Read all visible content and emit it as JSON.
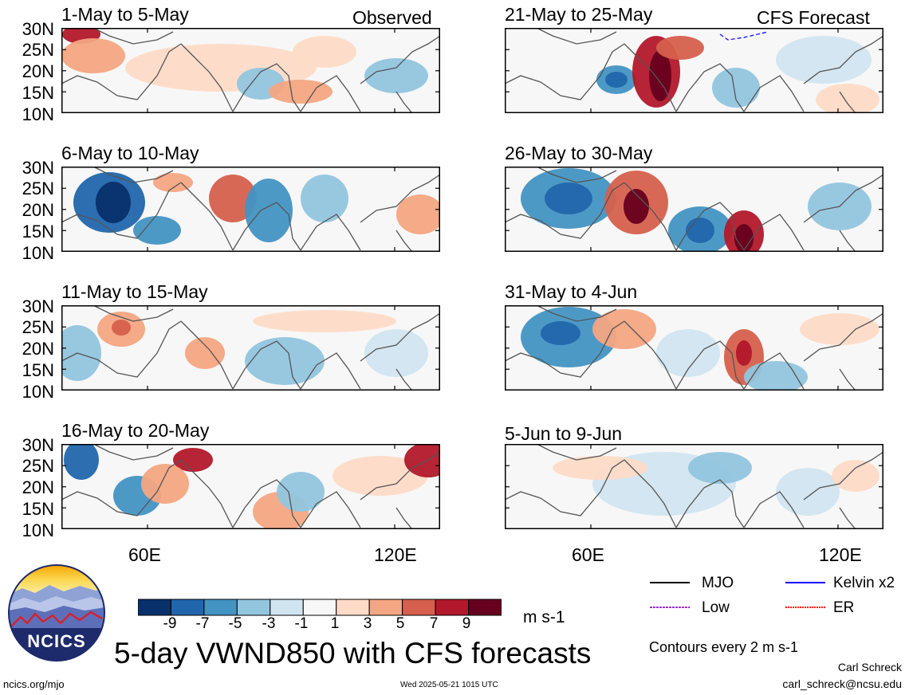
{
  "panels": [
    {
      "title": "1-May to 5-May",
      "tag": "Observed"
    },
    {
      "title": "6-May to 10-May",
      "tag": ""
    },
    {
      "title": "11-May to 15-May",
      "tag": ""
    },
    {
      "title": "16-May to 20-May",
      "tag": ""
    },
    {
      "title": "21-May to 25-May",
      "tag": "CFS Forecast"
    },
    {
      "title": "26-May to 30-May",
      "tag": ""
    },
    {
      "title": "31-May to 4-Jun",
      "tag": ""
    },
    {
      "title": "5-Jun to 9-Jun",
      "tag": ""
    }
  ],
  "lat_labels": [
    "30N",
    "25N",
    "20N",
    "15N",
    "10N"
  ],
  "lon_labels": [
    "60E",
    "120E"
  ],
  "colorbar": {
    "labels": [
      "-9",
      "-7",
      "-5",
      "-3",
      "-1",
      "1",
      "3",
      "5",
      "7",
      "9"
    ],
    "colors": [
      "#08306b",
      "#2166ac",
      "#4393c3",
      "#92c5de",
      "#d1e5f0",
      "#f7f7f7",
      "#fddbc7",
      "#f4a582",
      "#d6604d",
      "#b2182b",
      "#67001f"
    ],
    "units": "m s-1"
  },
  "legend": {
    "items": [
      {
        "label": "MJO",
        "color": "#000000"
      },
      {
        "label": "Kelvin x2",
        "color": "#0000ff"
      },
      {
        "label": "Low",
        "color": "#9933cc"
      },
      {
        "label": "ER",
        "color": "#ff0000"
      }
    ],
    "contours_note": "Contours every 2 m s-1"
  },
  "main_title": "5-day VWND850 with CFS forecasts",
  "logo_text": "NCICS",
  "footer": {
    "left": "ncics.org/mjo",
    "center": "Wed 2025-05-21 1015 UTC",
    "author": "Carl Schreck",
    "email": "carl_schreck@ncsu.edu"
  }
}
